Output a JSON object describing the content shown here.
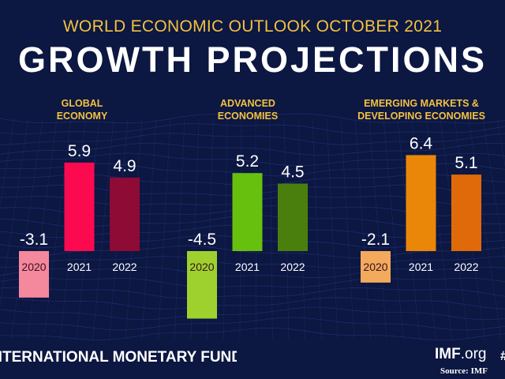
{
  "header": {
    "supertitle": "WORLD ECONOMIC OUTLOOK OCTOBER 2021",
    "title": "GROWTH PROJECTIONS"
  },
  "footer": {
    "org": "INTERNATIONAL MONETARY FUND",
    "site_bold": "IMF",
    "site_rest": ".org",
    "hash": "#",
    "source": "Source: IMF"
  },
  "colors": {
    "background": "#0c1742",
    "panel_title": "#f3c240"
  },
  "chart_data": [
    {
      "type": "bar",
      "title": "GLOBAL\nECONOMY",
      "categories": [
        "2020",
        "2021",
        "2022"
      ],
      "values": [
        -3.1,
        5.9,
        4.9
      ],
      "value_labels": [
        "-3.1",
        "5.9",
        "4.9"
      ],
      "colors": [
        "#f4889c",
        "#fb0a50",
        "#8e0b35"
      ]
    },
    {
      "type": "bar",
      "title": "ADVANCED\nECONOMIES",
      "categories": [
        "2020",
        "2021",
        "2022"
      ],
      "values": [
        -4.5,
        5.2,
        4.5
      ],
      "value_labels": [
        "-4.5",
        "5.2",
        "4.5"
      ],
      "colors": [
        "#9ed12e",
        "#68c00e",
        "#4a7f0e"
      ]
    },
    {
      "type": "bar",
      "title": "EMERGING MARKETS &\nDEVELOPING ECONOMIES",
      "categories": [
        "2020",
        "2021",
        "2022"
      ],
      "values": [
        -2.1,
        6.4,
        5.1
      ],
      "value_labels": [
        "-2.1",
        "6.4",
        "5.1"
      ],
      "colors": [
        "#f3aa5c",
        "#ea8708",
        "#e06a09"
      ]
    }
  ]
}
